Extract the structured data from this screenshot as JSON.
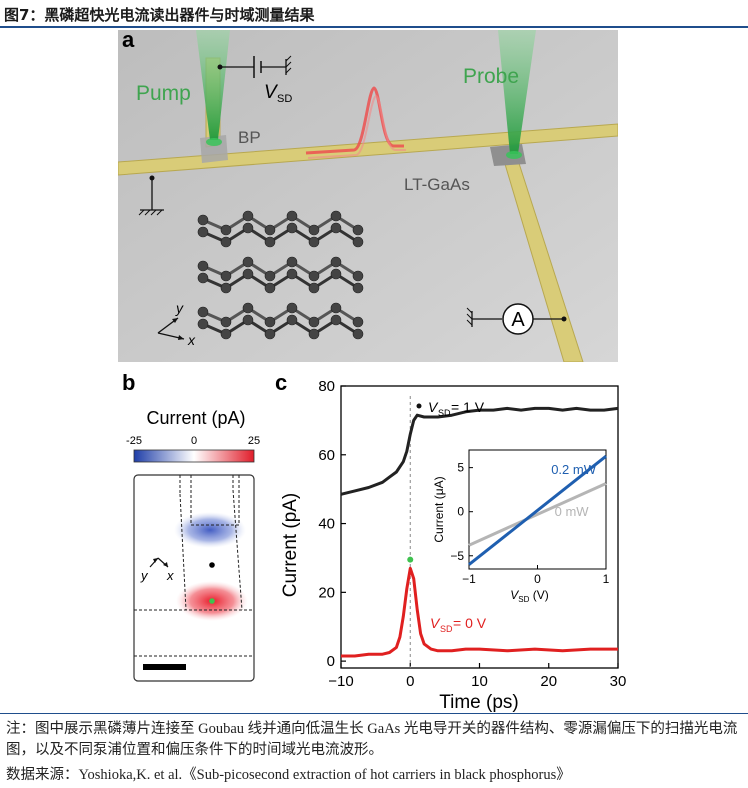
{
  "figure": {
    "title": "图7：黑磷超快光电流读出器件与时域测量结果",
    "note": "注：图中展示黑磷薄片连接至 Goubau 线并通向低温生长 GaAs 光电导开关的器件结构、零源漏偏压下的扫描光电流图，以及不同泵浦位置和偏压条件下的时间域光电流波形。",
    "source": "数据来源：Yoshioka,K. et al.《Sub-picosecond extraction of hot carriers in black phosphorus》"
  },
  "panel_a": {
    "letter": "a",
    "pump": "Pump",
    "probe": "Probe",
    "vsd_v": "V",
    "vsd_sub": "SD",
    "bp": "BP",
    "ltgaas": "LT-GaAs",
    "ammeter": "A",
    "axis_y": "y",
    "axis_x": "x"
  },
  "panel_b": {
    "letter": "b",
    "colorbar_title": "Current (pA)",
    "ticks": [
      "-25",
      "0",
      "25"
    ],
    "axis_y": "y",
    "axis_x": "x",
    "colors": {
      "negative": "#2a4bb0",
      "positive": "#e02030"
    }
  },
  "panel_c": {
    "letter": "c",
    "annot_top_v": "V",
    "annot_top_sub": "SD",
    "annot_top_val": " = 1 V",
    "annot_bot_v": "V",
    "annot_bot_sub": "SD",
    "annot_bot_val": " = 0 V",
    "colors": {
      "vsd1": "#222222",
      "vsd0": "#e02020",
      "mw02": "#1f5fb0",
      "mw0": "#b5b5b5"
    }
  },
  "chart_data": [
    {
      "type": "line",
      "xlabel": "Time (ps)",
      "ylabel": "Current (pA)",
      "xlim": [
        -10,
        30
      ],
      "ylim": [
        -2,
        80
      ],
      "xticks": [
        "-10",
        "0",
        "10",
        "20",
        "30"
      ],
      "yticks": [
        "0",
        "20",
        "40",
        "60",
        "80"
      ],
      "series": [
        {
          "name": "V_SD = 1 V",
          "x": [
            -10,
            -8,
            -6,
            -4,
            -3,
            -2,
            -1,
            -0.5,
            0,
            0.5,
            1,
            2,
            4,
            6,
            8,
            10,
            12,
            14,
            16,
            18,
            20,
            22,
            24,
            26,
            28,
            30
          ],
          "y": [
            48.5,
            49.5,
            50.5,
            52,
            53.5,
            55,
            58,
            61,
            66,
            70,
            71.5,
            71,
            71,
            71.5,
            72.5,
            73,
            73,
            73.5,
            73,
            73.5,
            73.5,
            73,
            73.5,
            73,
            73,
            73.5
          ]
        },
        {
          "name": "V_SD = 0 V",
          "x": [
            -10,
            -8,
            -6,
            -4,
            -3,
            -2,
            -1.5,
            -1,
            -0.5,
            0,
            0.5,
            1,
            1.5,
            2,
            3,
            4,
            6,
            8,
            10,
            14,
            18,
            22,
            26,
            30
          ],
          "y": [
            1.5,
            1.5,
            2,
            2,
            2.5,
            4,
            7,
            13,
            21,
            27,
            24,
            15,
            8,
            5,
            3.5,
            3,
            3,
            3.5,
            3.5,
            3,
            3.5,
            3,
            3.5,
            3.5
          ]
        }
      ]
    },
    {
      "type": "line",
      "xlabel_v": "V",
      "xlabel_sub": "SD",
      "xlabel_unit": " (V)",
      "ylabel": "Current (μA)",
      "xlim": [
        -1,
        1
      ],
      "ylim": [
        -6.5,
        7
      ],
      "xticks": [
        "-1",
        "0",
        "1"
      ],
      "yticks": [
        "-5",
        "0",
        "5"
      ],
      "series": [
        {
          "name": "0.2 mW",
          "x": [
            -1,
            1
          ],
          "y": [
            -6.0,
            6.3
          ]
        },
        {
          "name": "0 mW",
          "x": [
            -1,
            1
          ],
          "y": [
            -3.8,
            3.2
          ]
        }
      ]
    }
  ]
}
